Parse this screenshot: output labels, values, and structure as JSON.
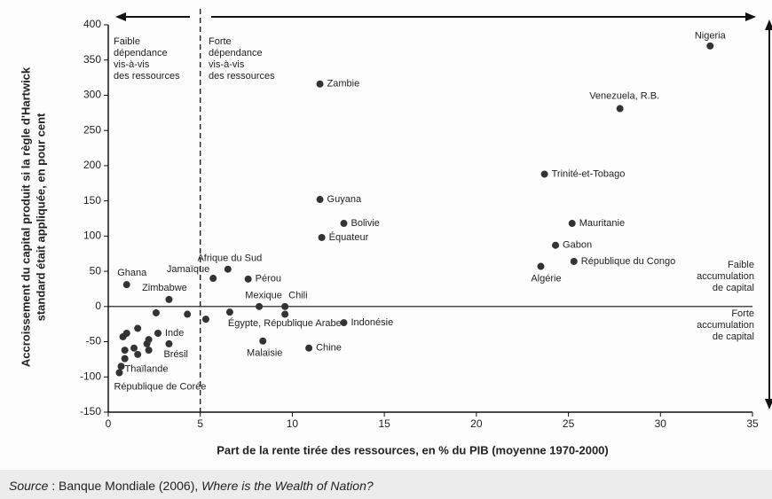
{
  "chart_data": {
    "type": "scatter",
    "x_label": "Part de la rente tirée des ressources, en % du PIB (moyenne 1970-2000)",
    "y_label": [
      "Accroissement du capital produit si la règle d'Hartwick",
      "standard était appliquée, en pour cent"
    ],
    "source": {
      "prefix": "Source",
      "sep": " : Banque Mondiale (2006), ",
      "title": "Where is the Wealth of Nation?"
    },
    "xlim": [
      0,
      35
    ],
    "xticks": [
      0,
      5,
      10,
      15,
      20,
      25,
      30,
      35
    ],
    "ylim": [
      -150,
      400
    ],
    "yticks": [
      -150,
      -100,
      -50,
      0,
      50,
      100,
      150,
      200,
      250,
      300,
      350,
      400
    ],
    "vline": 5,
    "color": "#333333",
    "annotations": [
      [
        "Faible",
        "dépendance",
        "vis-à-vis",
        "des ressources"
      ],
      [
        "Forte",
        "dépendance",
        "vis-à-vis",
        "des ressources"
      ],
      [
        "Faible",
        "accumulation",
        "de capital"
      ],
      [
        "Forte",
        "accumulation",
        "de capital"
      ]
    ],
    "x": [
      32.7,
      27.8,
      11.5,
      23.7,
      11.5,
      12.8,
      11.6,
      25.2,
      24.3,
      23.5,
      25.3,
      1.0,
      3.3,
      5.7,
      6.5,
      7.6,
      8.2,
      9.6,
      6.6,
      9.6,
      12.8,
      8.4,
      10.9,
      2.7,
      3.3,
      0.7,
      0.6,
      2.6,
      4.3,
      5.3,
      1.0,
      0.8,
      1.6,
      2.2,
      0.9,
      1.4,
      1.6,
      2.2,
      2.1,
      0.9
    ],
    "y": [
      370,
      281,
      316,
      188,
      152,
      118,
      98,
      118,
      87,
      57,
      64,
      31,
      10,
      40,
      53,
      39,
      0,
      0,
      -8,
      -11,
      -23,
      -49,
      -59,
      -38,
      -53,
      -85,
      -94,
      -9,
      -11,
      -18,
      -38,
      -43,
      -31,
      -47,
      -62,
      -59,
      -68,
      -62,
      -53,
      -74
    ],
    "labels": [
      "Nigeria",
      "Venezuela, R.B.",
      "Zambie",
      "Trinité-et-Tobago",
      "Guyana",
      "Bolivie",
      "Équateur",
      "Mauritanie",
      "Gabon",
      "Algérie",
      "République du Congo",
      "Ghana",
      "Zimbabwe",
      "Jamaïque",
      "Afrique du Sud",
      "Pérou",
      "Mexique",
      "Chili",
      "Égypte, République Arabe",
      null,
      "Indonésie",
      "Malaisie",
      "Chine",
      "Inde",
      "Brésil",
      "Thaïlande",
      "République de Corée",
      null,
      null,
      null,
      null,
      null,
      null,
      null,
      null,
      null,
      null,
      null,
      null,
      null
    ]
  }
}
